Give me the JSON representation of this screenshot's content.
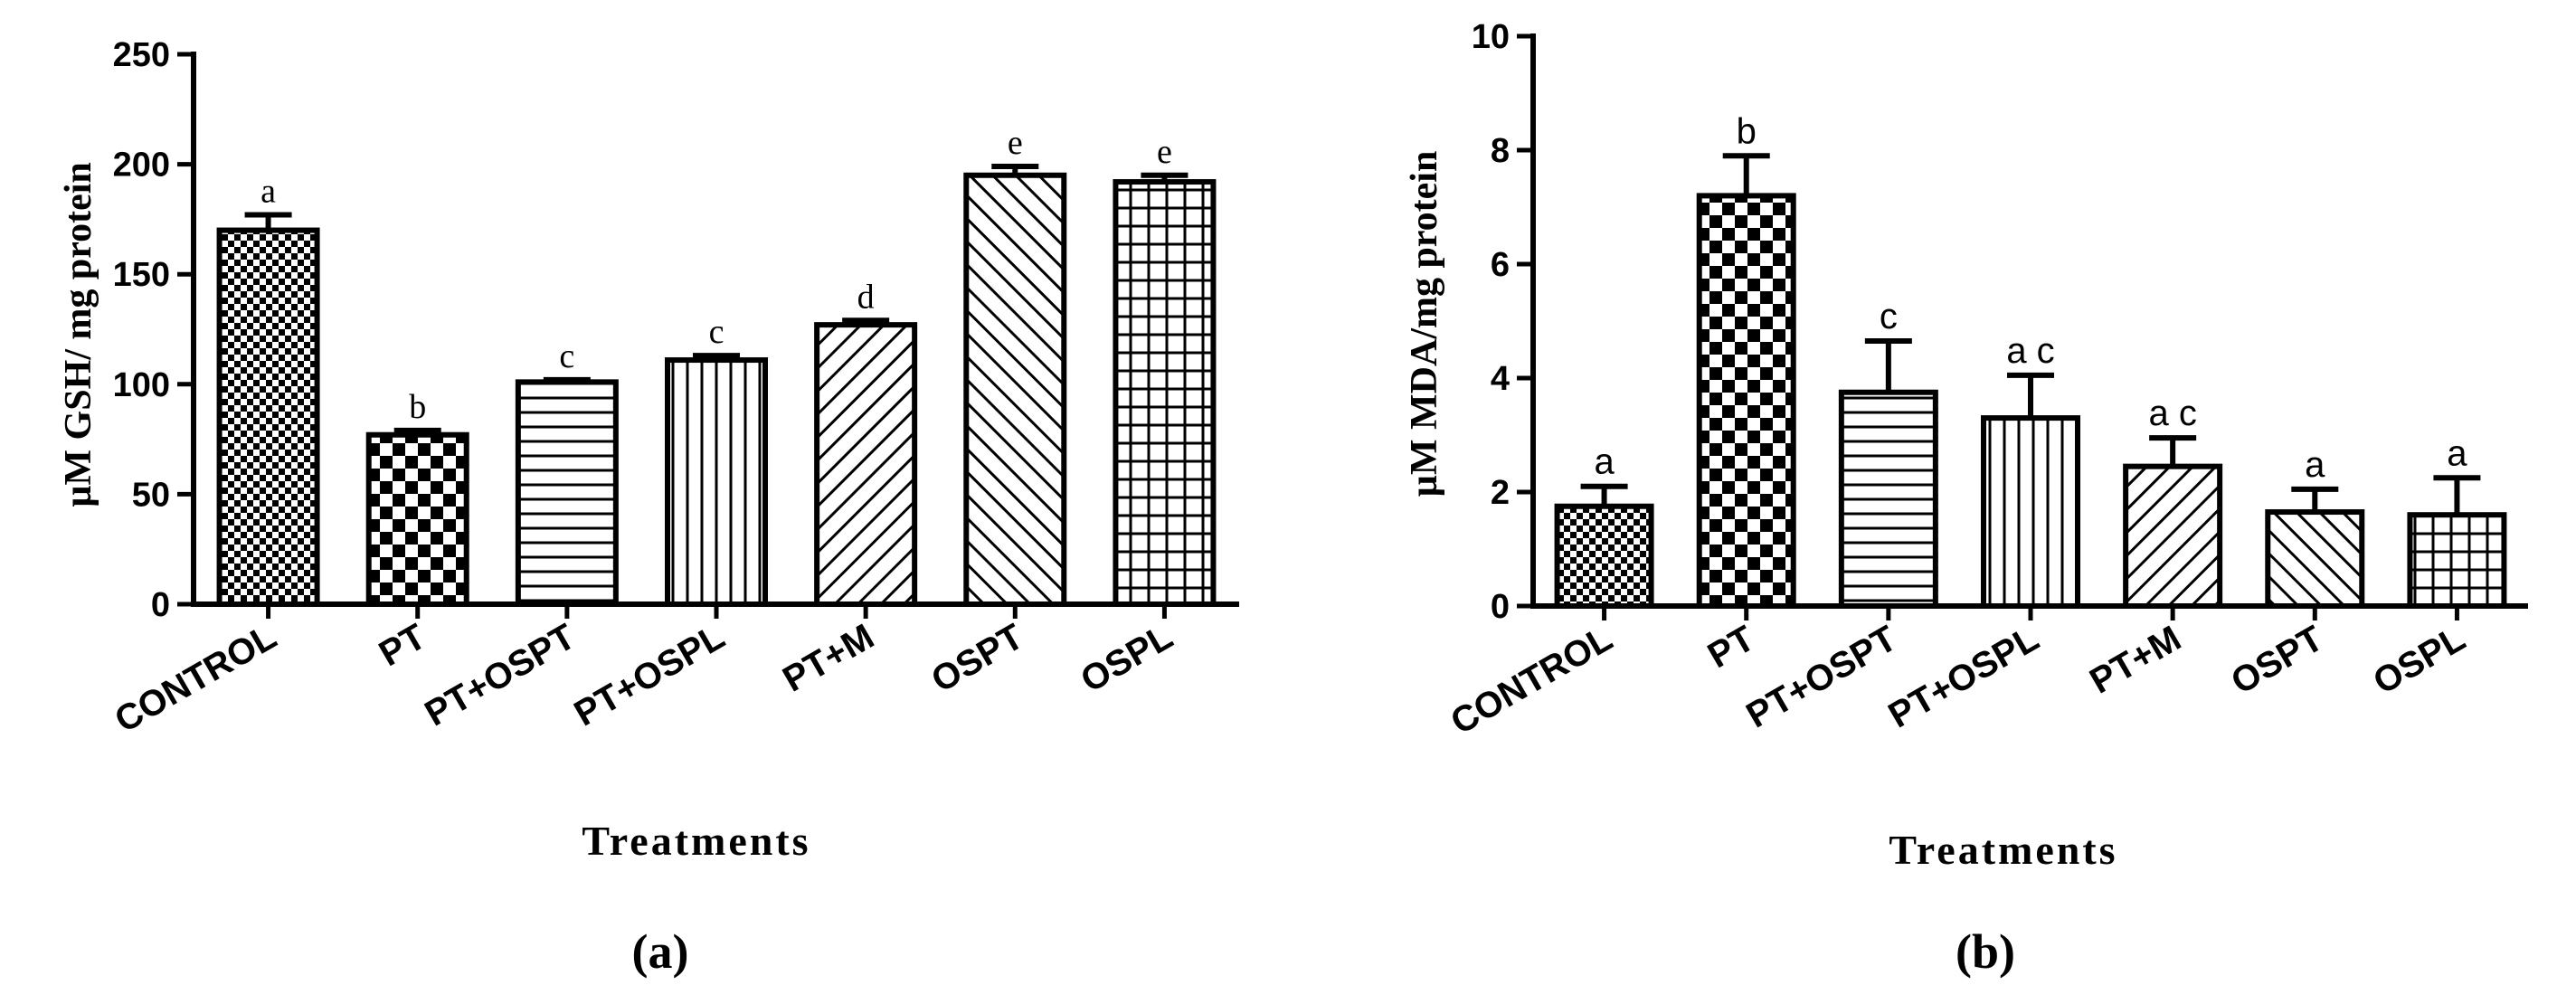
{
  "chart_data": [
    {
      "id": "a",
      "type": "bar",
      "panel_label": "(a)",
      "xlabel": "Treatments",
      "ylabel": "µM GSH/ mg protein",
      "ylim": [
        0,
        250
      ],
      "yticks": [
        0,
        50,
        100,
        150,
        200,
        250
      ],
      "categories": [
        "CONTROL",
        "PT",
        "PT+OSPT",
        "PT+OSPL",
        "PT+M",
        "OSPT",
        "OSPL"
      ],
      "values": [
        170,
        77,
        101,
        111,
        127,
        195,
        192
      ],
      "errors": [
        7,
        2,
        1,
        2,
        2,
        4,
        3
      ],
      "significance": [
        "a",
        "b",
        "c",
        "c",
        "d",
        "e",
        "e"
      ],
      "patterns": [
        "checker-fine",
        "checker-bold",
        "hlines",
        "vlines",
        "diag-up",
        "diag-down",
        "grid"
      ],
      "grid": false
    },
    {
      "id": "b",
      "type": "bar",
      "panel_label": "(b)",
      "xlabel": "Treatments",
      "ylabel": "µM MDA/mg protein",
      "ylim": [
        0,
        10
      ],
      "yticks": [
        0,
        2,
        4,
        6,
        8,
        10
      ],
      "categories": [
        "CONTROL",
        "PT",
        "PT+OSPT",
        "PT+OSPL",
        "PT+M",
        "OSPT",
        "OSPL"
      ],
      "values": [
        1.75,
        7.2,
        3.75,
        3.3,
        2.45,
        1.65,
        1.6
      ],
      "errors": [
        0.35,
        0.7,
        0.9,
        0.75,
        0.5,
        0.4,
        0.65
      ],
      "significance": [
        "a",
        "b",
        "c",
        "a c",
        "a c",
        "a",
        "a"
      ],
      "patterns": [
        "checker-fine",
        "checker-bold",
        "hlines",
        "vlines",
        "diag-up",
        "diag-down",
        "grid"
      ],
      "grid": false
    }
  ]
}
